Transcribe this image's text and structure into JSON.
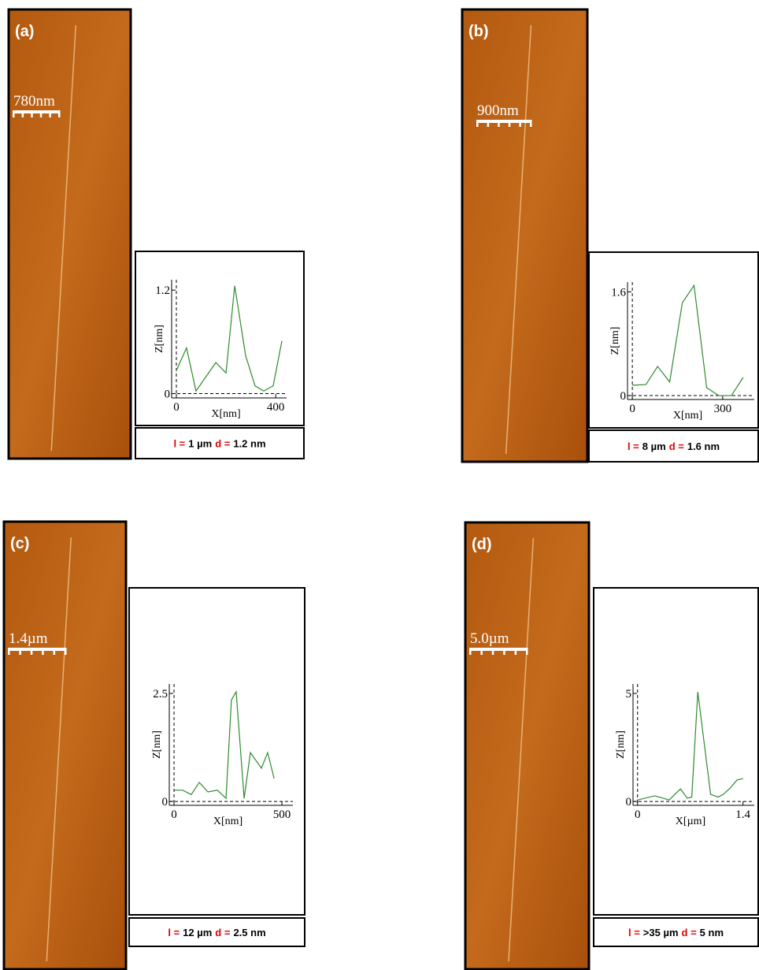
{
  "chart_data": [
    {
      "type": "line",
      "panel_label": "(a)",
      "scale_bar_label": "780nm",
      "x_label": "X[nm]",
      "y_label": "Z[nm]",
      "x": [
        0,
        41,
        79,
        159,
        200,
        235,
        279,
        317,
        352,
        390,
        425
      ],
      "series": [
        {
          "color": "#2e8b2e",
          "values": [
            0.27,
            0.53,
            0.03,
            0.36,
            0.24,
            1.25,
            0.44,
            0.09,
            0.03,
            0.09,
            0.61
          ]
        }
      ],
      "xlim": [
        -19,
        444
      ],
      "ylim": [
        -0.05,
        1.32
      ],
      "xticks": [
        0,
        400
      ],
      "yticks": [
        0,
        1.2
      ],
      "length_label": "l =",
      "length": "1 µm",
      "diameter_label": "d =",
      "diameter": "1.2 nm",
      "highlight_color": "#e00000"
    },
    {
      "type": "line",
      "panel_label": "(b)",
      "scale_bar_label": "900nm",
      "x_label": "X[nm]",
      "y_label": "Z[nm]",
      "x": [
        0,
        45,
        84,
        124,
        166,
        205,
        247,
        287,
        329,
        368
      ],
      "series": [
        {
          "color": "#2e8b2e",
          "values": [
            0.16,
            0.17,
            0.45,
            0.21,
            1.43,
            1.7,
            0.12,
            0,
            0,
            0.28
          ]
        }
      ],
      "xlim": [
        -16,
        405
      ],
      "ylim": [
        -0.06,
        1.75
      ],
      "xticks": [
        0,
        300
      ],
      "yticks": [
        0,
        1.6
      ],
      "length_label": "l =",
      "length": "8 µm",
      "diameter_label": "d =",
      "diameter": "1.6 nm",
      "highlight_color": "#e00000"
    },
    {
      "type": "line",
      "panel_label": "(c)",
      "scale_bar_label": "1.4µm",
      "x_label": "X[nm]",
      "y_label": "Z[nm]",
      "x": [
        0,
        40,
        80,
        117,
        157,
        201,
        241,
        266,
        288,
        325,
        354,
        405,
        434,
        464
      ],
      "series": [
        {
          "color": "#2e8b2e",
          "values": [
            0.26,
            0.26,
            0.16,
            0.44,
            0.22,
            0.26,
            0.07,
            2.35,
            2.54,
            0.07,
            1.13,
            0.77,
            1.13,
            0.53
          ]
        }
      ],
      "xlim": [
        -22,
        551
      ],
      "ylim": [
        -0.09,
        2.72
      ],
      "xticks": [
        0,
        500
      ],
      "yticks": [
        0,
        2.5
      ],
      "length_label": "l =",
      "length": "12 µm",
      "diameter_label": "d =",
      "diameter": "2.5 nm",
      "highlight_color": "#e00000"
    },
    {
      "type": "line",
      "panel_label": "(d)",
      "scale_bar_label": "5.0µm",
      "x_label": "X[µm]",
      "y_label": "Z[nm]",
      "x": [
        0,
        0.23,
        0.42,
        0.57,
        0.66,
        0.72,
        0.8,
        0.97,
        1.07,
        1.14,
        1.23,
        1.32,
        1.4
      ],
      "series": [
        {
          "color": "#2e8b2e",
          "values": [
            0.07,
            0.26,
            0.07,
            0.58,
            0.15,
            0.2,
            5.07,
            0.33,
            0.2,
            0.33,
            0.62,
            0.99,
            1.06
          ]
        }
      ],
      "xlim": [
        -0.06,
        1.55
      ],
      "ylim": [
        -0.18,
        5.44
      ],
      "xticks": [
        0,
        1.4
      ],
      "yticks": [
        0,
        5
      ],
      "length_label": "l =",
      "length": ">35 µm",
      "diameter_label": "d =",
      "diameter": "5 nm",
      "highlight_color": "#e00000"
    }
  ]
}
